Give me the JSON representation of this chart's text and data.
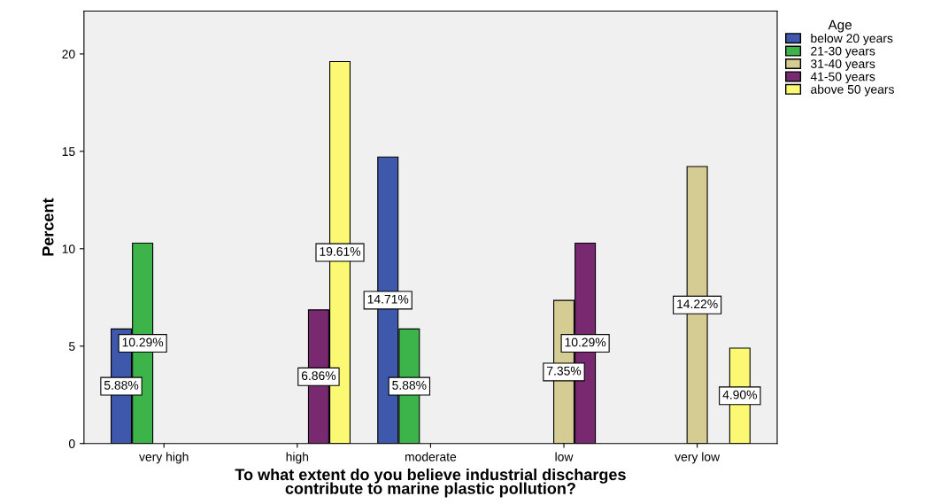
{
  "chart_data": {
    "type": "bar",
    "xlabel": "To what extent do you believe industrial discharges\ncontribute to marine plastic pollution?",
    "ylabel": "Percent",
    "legend_title": "Age",
    "categories": [
      "very high",
      "high",
      "moderate",
      "low",
      "very low"
    ],
    "series": [
      {
        "name": "below 20 years",
        "color": "#3e58ac",
        "values": [
          5.88,
          null,
          14.71,
          null,
          null
        ],
        "value_labels": [
          "5.88%",
          null,
          "14.71%",
          null,
          null
        ]
      },
      {
        "name": "21-30 years",
        "color": "#3cb44a",
        "values": [
          10.29,
          null,
          5.88,
          null,
          null
        ],
        "value_labels": [
          "10.29%",
          null,
          "5.88%",
          null,
          null
        ]
      },
      {
        "name": "31-40 years",
        "color": "#d5cc94",
        "values": [
          null,
          null,
          null,
          7.35,
          14.22
        ],
        "value_labels": [
          null,
          null,
          null,
          "7.35%",
          "14.22%"
        ]
      },
      {
        "name": "41-50 years",
        "color": "#79296f",
        "values": [
          null,
          6.86,
          null,
          10.29,
          null
        ],
        "value_labels": [
          null,
          "6.86%",
          null,
          "10.29%",
          null
        ]
      },
      {
        "name": "above 50 years",
        "color": "#fbf873",
        "values": [
          null,
          19.61,
          null,
          null,
          4.9
        ],
        "value_labels": [
          null,
          "19.61%",
          null,
          null,
          "4.90%"
        ]
      }
    ],
    "ylim": [
      0,
      22.2
    ],
    "yticks": [
      0,
      5,
      10,
      15,
      20
    ],
    "grid": false,
    "legend": "top right"
  }
}
